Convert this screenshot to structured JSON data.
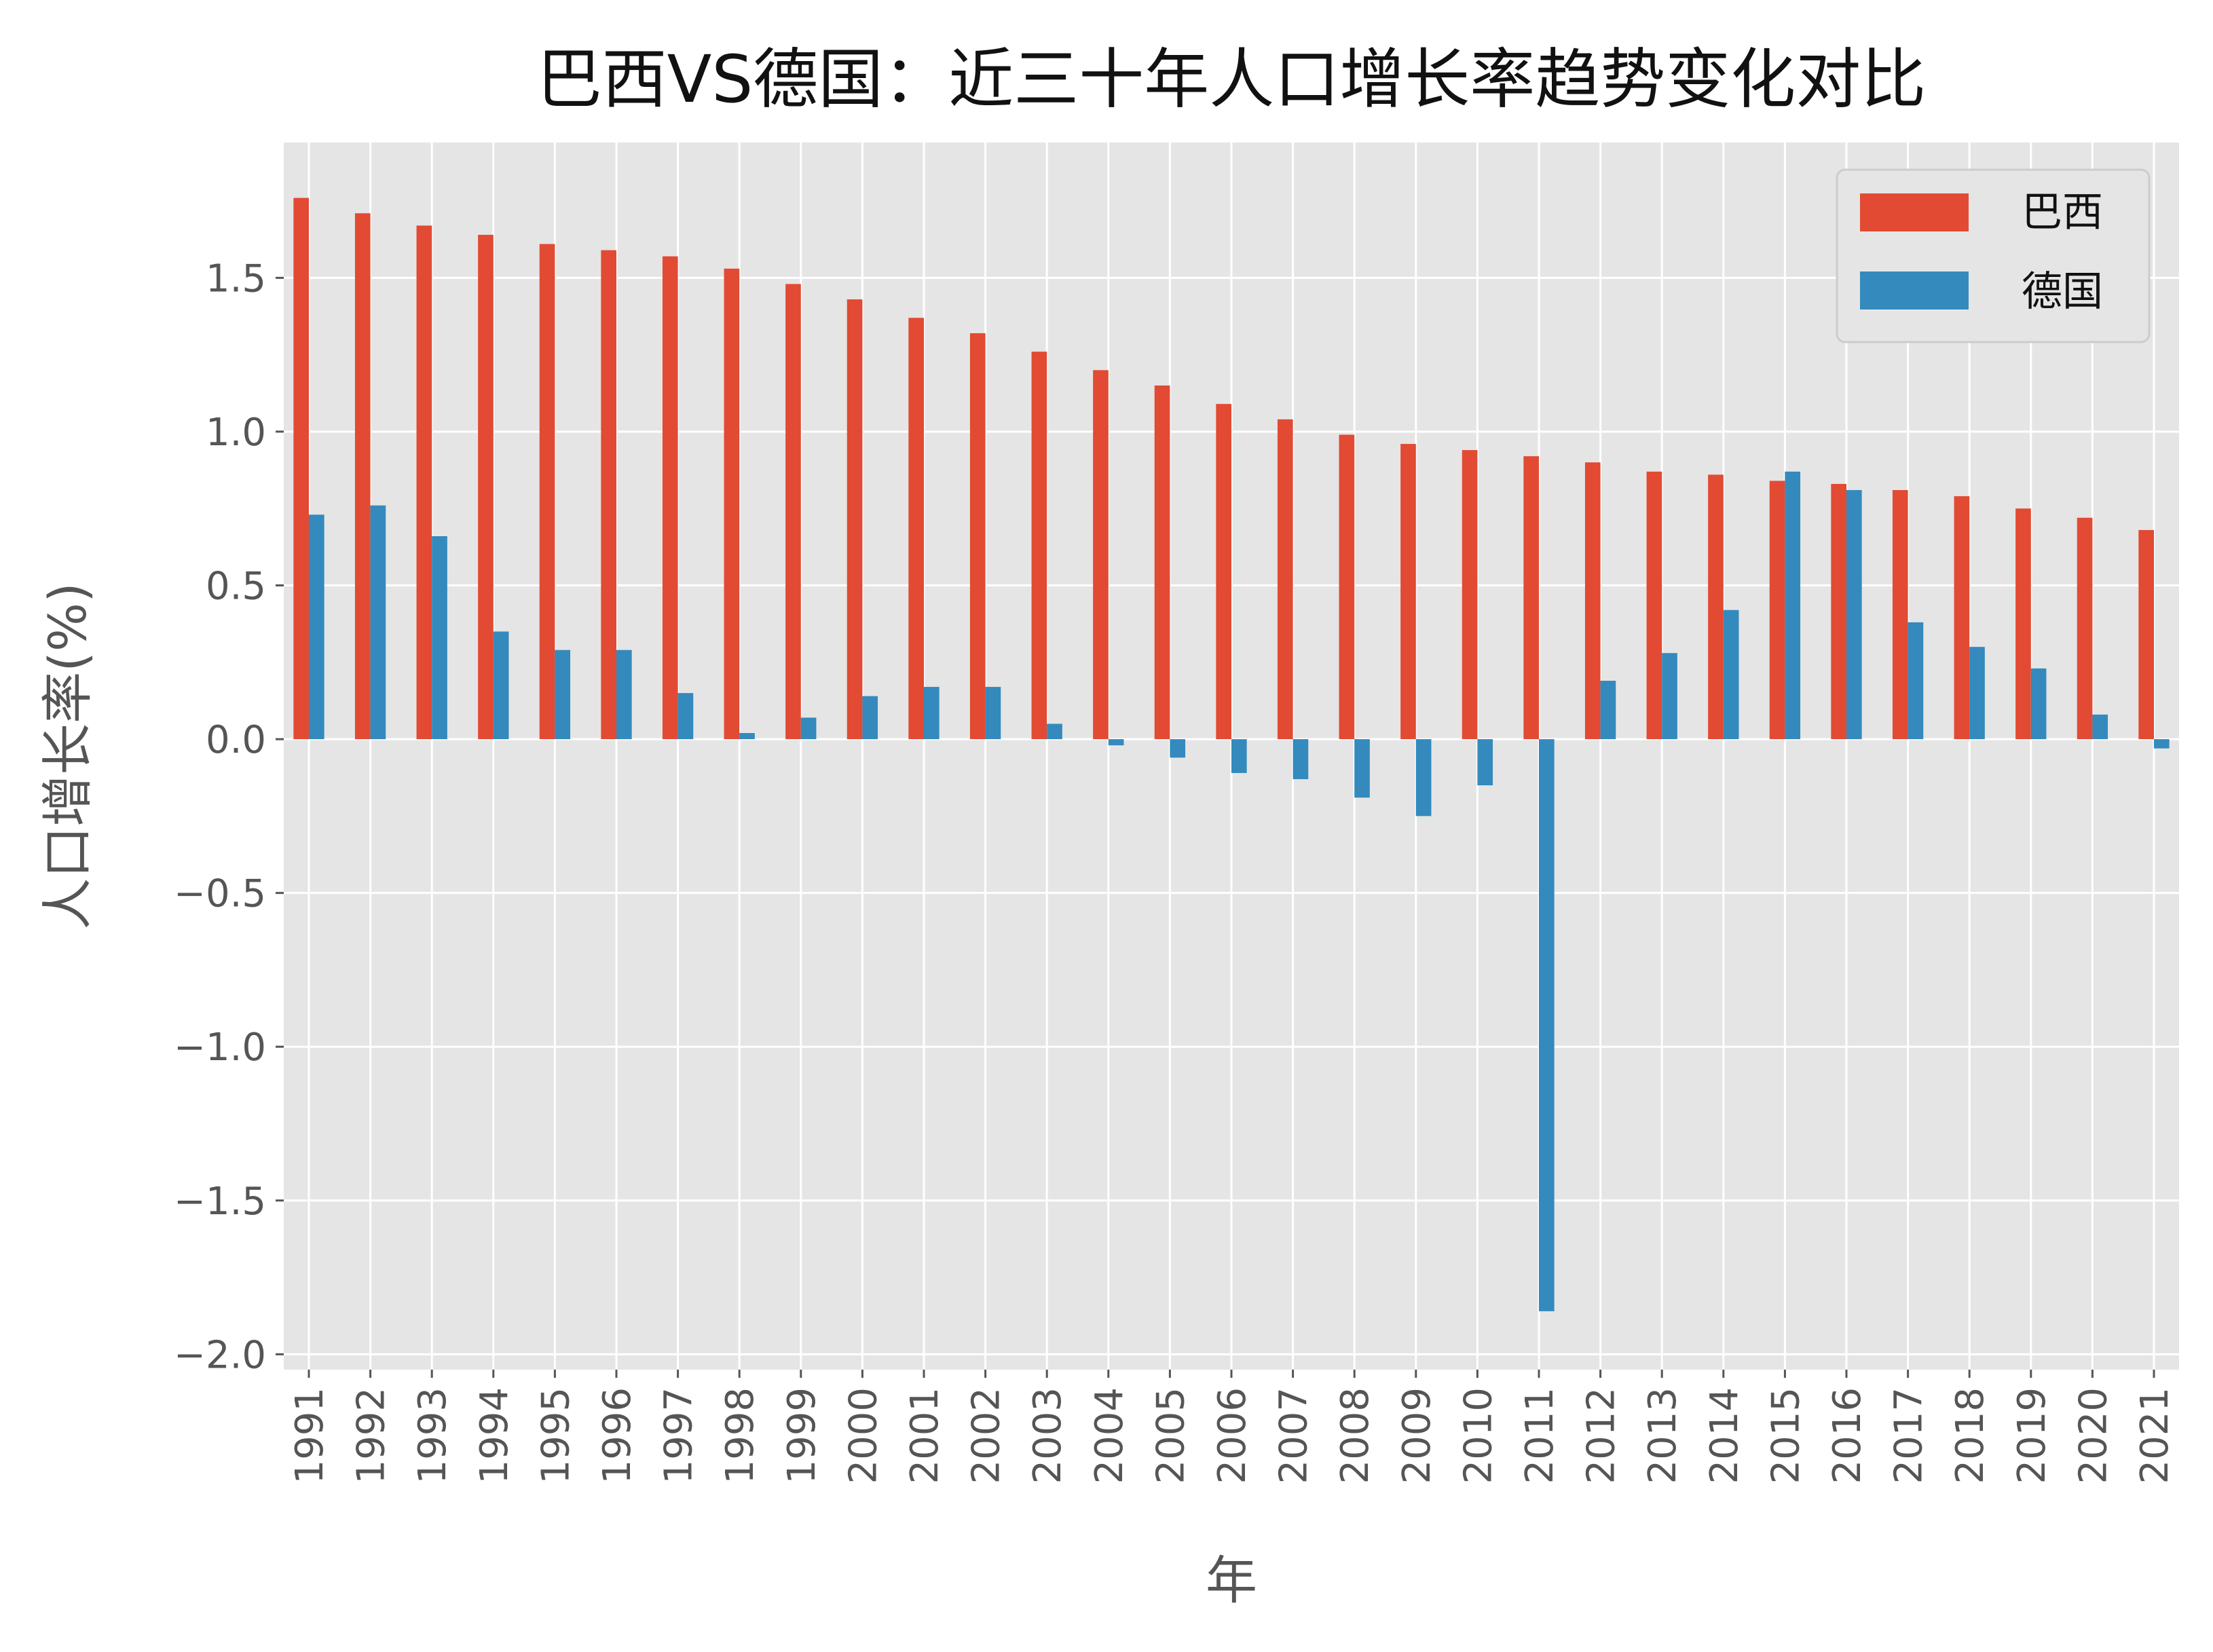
{
  "chart_data": {
    "type": "bar",
    "title": "巴西VS德国：近三十年人口增长率趋势变化对比",
    "xlabel": "年",
    "ylabel": "人口增长率(%)",
    "ylim": [
      -2.05,
      1.94
    ],
    "yticks": [
      1.5,
      1.0,
      0.5,
      0.0,
      -0.5,
      -1.0,
      -1.5,
      -2.0
    ],
    "ytick_labels": [
      "1.5",
      "1.0",
      "0.5",
      "0.0",
      "−0.5",
      "−1.0",
      "−1.5",
      "−2.0"
    ],
    "grid": true,
    "legend_position": "top-right",
    "categories": [
      "1991",
      "1992",
      "1993",
      "1994",
      "1995",
      "1996",
      "1997",
      "1998",
      "1999",
      "2000",
      "2001",
      "2002",
      "2003",
      "2004",
      "2005",
      "2006",
      "2007",
      "2008",
      "2009",
      "2010",
      "2011",
      "2012",
      "2013",
      "2014",
      "2015",
      "2016",
      "2017",
      "2018",
      "2019",
      "2020",
      "2021"
    ],
    "series": [
      {
        "name": "巴西",
        "color": "#E24A33",
        "values": [
          1.76,
          1.71,
          1.67,
          1.64,
          1.61,
          1.59,
          1.57,
          1.53,
          1.48,
          1.43,
          1.37,
          1.32,
          1.26,
          1.2,
          1.15,
          1.09,
          1.04,
          0.99,
          0.96,
          0.94,
          0.92,
          0.9,
          0.87,
          0.86,
          0.84,
          0.83,
          0.81,
          0.79,
          0.75,
          0.72,
          0.68
        ]
      },
      {
        "name": "德国",
        "color": "#348ABD",
        "values": [
          0.73,
          0.76,
          0.66,
          0.35,
          0.29,
          0.29,
          0.15,
          0.02,
          0.07,
          0.14,
          0.17,
          0.17,
          0.05,
          -0.02,
          -0.06,
          -0.11,
          -0.13,
          -0.19,
          -0.25,
          -0.15,
          -1.86,
          0.19,
          0.28,
          0.42,
          0.87,
          0.81,
          0.38,
          0.3,
          0.23,
          0.08,
          -0.03
        ]
      }
    ]
  },
  "style": {
    "plot_background": "#E5E5E5",
    "grid_color": "#FFFFFF",
    "text_color": "#555555",
    "title_color": "#111111"
  }
}
